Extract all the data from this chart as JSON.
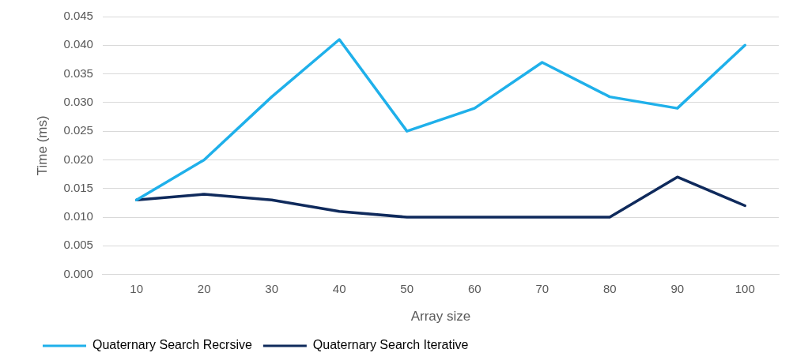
{
  "chart_data": {
    "type": "line",
    "xlabel": "Array size",
    "ylabel": "Time (ms)",
    "categories": [
      "10",
      "20",
      "30",
      "40",
      "50",
      "60",
      "70",
      "80",
      "90",
      "100"
    ],
    "series": [
      {
        "name": "Quaternary Search Recrsive",
        "color": "#1fb0ea",
        "values": [
          0.013,
          0.02,
          0.031,
          0.041,
          0.025,
          0.029,
          0.037,
          0.031,
          0.029,
          0.04
        ]
      },
      {
        "name": "Quaternary Search Iterative",
        "color": "#0f2a5c",
        "values": [
          0.013,
          0.014,
          0.013,
          0.011,
          0.01,
          0.01,
          0.01,
          0.01,
          0.017,
          0.012
        ]
      }
    ],
    "ylim": [
      0,
      0.045
    ],
    "yticks": [
      {
        "value": 0,
        "label": "0.000"
      },
      {
        "value": 0.005,
        "label": "0.005"
      },
      {
        "value": 0.01,
        "label": "0.010"
      },
      {
        "value": 0.015,
        "label": "0.015"
      },
      {
        "value": 0.02,
        "label": "0.020"
      },
      {
        "value": 0.025,
        "label": "0.025"
      },
      {
        "value": 0.03,
        "label": "0.030"
      },
      {
        "value": 0.035,
        "label": "0.035"
      },
      {
        "value": 0.04,
        "label": "0.040"
      },
      {
        "value": 0.045,
        "label": "0.045"
      }
    ],
    "grid": "y",
    "legend": "bottom",
    "marker": "none",
    "line_style": "solid"
  }
}
